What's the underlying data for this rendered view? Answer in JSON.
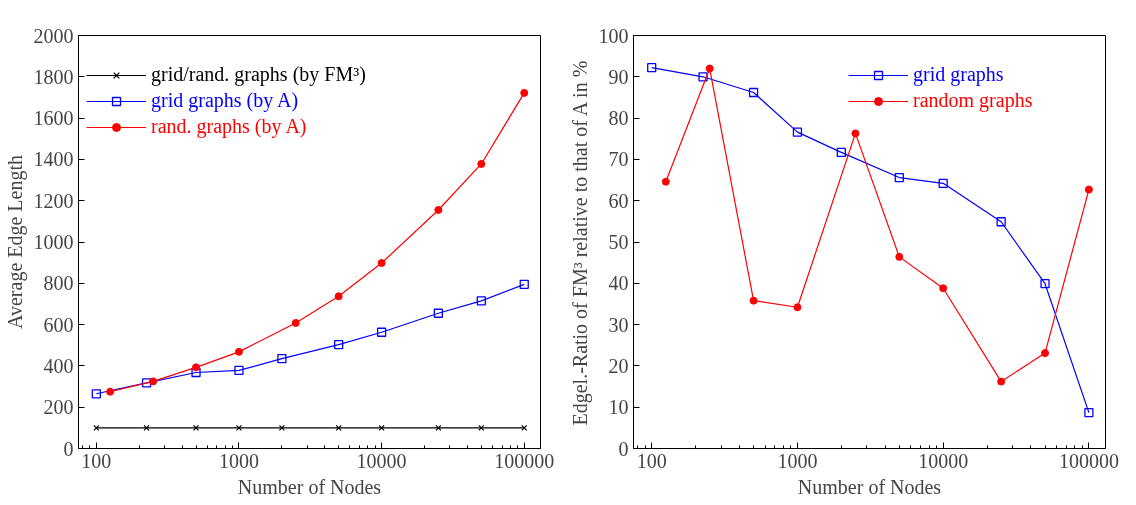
{
  "chart_data": [
    {
      "type": "line",
      "xlabel": "Number of Nodes",
      "ylabel": "Average Edge Length",
      "log": "x",
      "xlim": [
        75,
        130000
      ],
      "ylim": [
        0,
        2000
      ],
      "xticks": [
        100,
        1000,
        10000,
        100000
      ],
      "yticks": [
        0,
        200,
        400,
        600,
        800,
        1000,
        1200,
        1400,
        1600,
        1800,
        2000
      ],
      "grid": false,
      "legend": "top left",
      "series": [
        {
          "name": "grid/rand. graphs (by FM³)",
          "color": "#000000",
          "marker": "cross",
          "x": [
            100,
            225,
            500,
            1000,
            2000,
            5000,
            10000,
            25000,
            50000,
            100000
          ],
          "values": [
            100,
            100,
            100,
            100,
            100,
            100,
            100,
            100,
            100,
            100
          ]
        },
        {
          "name": "grid graphs (by A)",
          "color": "#0000ff",
          "marker": "square",
          "x": [
            100,
            225,
            500,
            1000,
            2000,
            5000,
            10000,
            25000,
            50000,
            100000
          ],
          "values": [
            265,
            318,
            368,
            378,
            435,
            503,
            563,
            655,
            715,
            795
          ]
        },
        {
          "name": "rand. graphs (by A)",
          "color": "#ff0000",
          "marker": "circle",
          "x": [
            125,
            250,
            500,
            1000,
            2500,
            5000,
            10000,
            25000,
            50000,
            100000
          ],
          "values": [
            275,
            325,
            393,
            468,
            608,
            737,
            898,
            1155,
            1378,
            1722
          ]
        }
      ]
    },
    {
      "type": "line",
      "xlabel": "Number of Nodes",
      "ylabel": "Edgel.-Ratio of FM³ relative to that of A in %",
      "log": "x",
      "xlim": [
        75,
        130000
      ],
      "ylim": [
        0,
        100
      ],
      "xticks": [
        100,
        1000,
        10000,
        100000
      ],
      "yticks": [
        0,
        10,
        20,
        30,
        40,
        50,
        60,
        70,
        80,
        90,
        100
      ],
      "grid": false,
      "legend": "top right",
      "series": [
        {
          "name": "grid graphs",
          "color": "#0000ff",
          "marker": "square",
          "x": [
            100,
            225,
            500,
            1000,
            2000,
            5000,
            10000,
            25000,
            50000,
            100000
          ],
          "values": [
            92.2,
            90,
            86.2,
            76.6,
            71.7,
            65.6,
            64.2,
            54.9,
            39.9,
            8.7
          ]
        },
        {
          "name": "random graphs",
          "color": "#ff0000",
          "marker": "circle",
          "x": [
            125,
            250,
            500,
            1000,
            2500,
            5000,
            10000,
            25000,
            50000,
            100000
          ],
          "values": [
            64.6,
            92,
            35.8,
            34.2,
            76.3,
            46.4,
            38.8,
            16.2,
            23.1,
            62.7
          ]
        }
      ]
    }
  ]
}
